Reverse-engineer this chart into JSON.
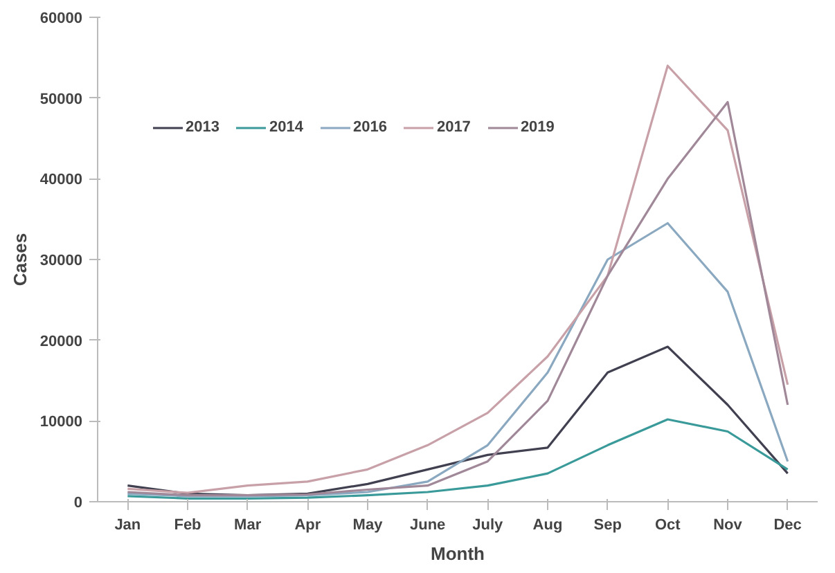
{
  "chart_data": {
    "type": "line",
    "xlabel": "Month",
    "ylabel": "Cases",
    "categories": [
      "Jan",
      "Feb",
      "Mar",
      "Apr",
      "May",
      "June",
      "July",
      "Aug",
      "Sep",
      "Oct",
      "Nov",
      "Dec"
    ],
    "ylim": [
      0,
      60000
    ],
    "yticks": [
      0,
      10000,
      20000,
      30000,
      40000,
      50000,
      60000
    ],
    "grid": false,
    "legend": "top left",
    "marker": "none",
    "line_style": "solid",
    "series": [
      {
        "name": "2013",
        "color": "#404050",
        "values": [
          2000,
          1000,
          800,
          1000,
          2200,
          4000,
          5800,
          6700,
          16000,
          19200,
          12000,
          3500
        ]
      },
      {
        "name": "2014",
        "color": "#3a9a9a",
        "values": [
          700,
          400,
          400,
          500,
          800,
          1200,
          2000,
          3500,
          7000,
          10200,
          8700,
          4000
        ]
      },
      {
        "name": "2016",
        "color": "#8aa8c0",
        "values": [
          1000,
          700,
          700,
          800,
          1200,
          2500,
          7000,
          16000,
          30000,
          34500,
          26000,
          5000
        ]
      },
      {
        "name": "2017",
        "color": "#c8a0a8",
        "values": [
          1600,
          1100,
          2000,
          2500,
          4000,
          7000,
          11000,
          18000,
          28000,
          54000,
          46000,
          14500
        ]
      },
      {
        "name": "2019",
        "color": "#a08898",
        "values": [
          1200,
          800,
          800,
          900,
          1500,
          2000,
          5000,
          12500,
          28000,
          40000,
          49500,
          12000
        ]
      }
    ]
  }
}
